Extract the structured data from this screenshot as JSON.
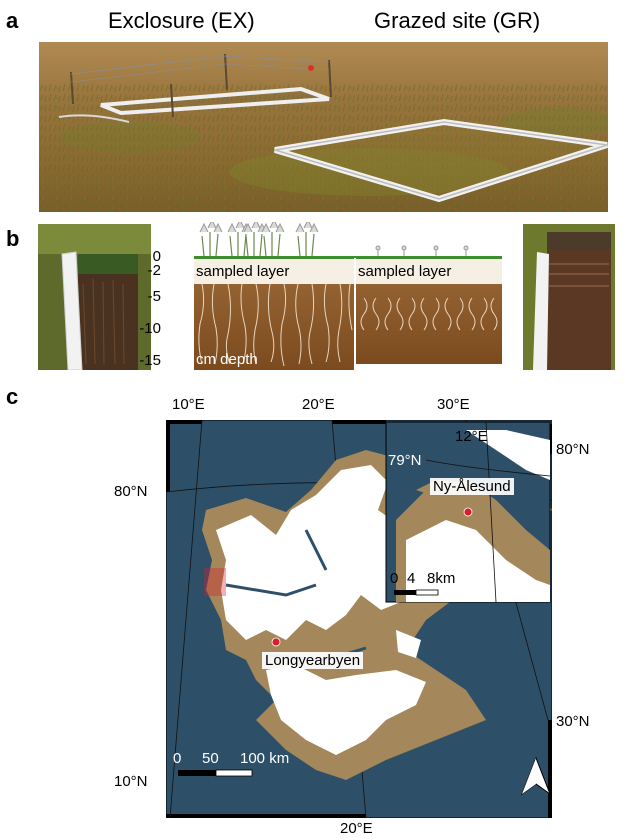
{
  "panel_a": {
    "letter": "a",
    "title_left": "Exclosure (EX)",
    "title_right": "Grazed site (GR)"
  },
  "panel_b": {
    "letter": "b",
    "depth_ticks": [
      "0",
      "-2",
      "-5",
      "-10",
      "-15"
    ],
    "depth_unit": "cm depth",
    "layer_label_left": "sampled layer",
    "layer_label_right": "sampled layer",
    "soil_color": "#8a5322",
    "moss_color": "#3e8e2e"
  },
  "panel_c": {
    "letter": "c",
    "lon_top": [
      "10°E",
      "20°E",
      "30°E"
    ],
    "lon_bottom": "20°E",
    "lat_left": [
      "80°N",
      "10°N"
    ],
    "lat_right": [
      "80°N",
      "30°N"
    ],
    "inset": {
      "lon": "12°E",
      "lat": "79°N",
      "place": "Ny-Ålesund",
      "scale": [
        "0",
        "4",
        "8km"
      ]
    },
    "scale": [
      "0",
      "50",
      "100 km"
    ],
    "place": "Longyearbyen",
    "sea_color": "#2e4f68",
    "land_color": "#a4875a",
    "ice_color": "#ffffff",
    "marker_color": "#d81e2a"
  }
}
